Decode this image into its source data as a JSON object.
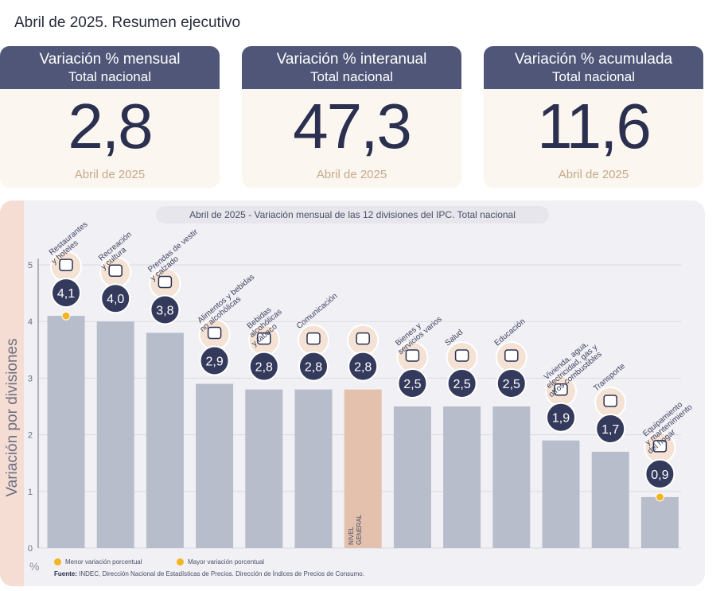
{
  "page": {
    "title": "Abril de 2025. Resumen ejecutivo"
  },
  "kpis": [
    {
      "title": "Variación % mensual",
      "subtitle": "Total nacional",
      "value": "2,8",
      "date": "Abril de 2025"
    },
    {
      "title": "Variación % interanual",
      "subtitle": "Total nacional",
      "value": "47,3",
      "date": "Abril de 2025"
    },
    {
      "title": "Variación % acumulada",
      "subtitle": "Total nacional",
      "value": "11,6",
      "date": "Abril de 2025"
    }
  ],
  "chart": {
    "side_label": "Variación por divisiones",
    "unit": "%",
    "legend_min": "Menor variación porcentual",
    "legend_max": "Mayor variación porcentual",
    "source_label": "Fuente:",
    "source_text": "INDEC, Dirección Nacional de Estadísticas de Precios. Dirección de Índices de Precios de Consumo.",
    "highlight_color": "#f2b623",
    "bar_color": "#b8bdcc",
    "general_bar_color": "#e3c1ad"
  },
  "chart_data": {
    "type": "bar",
    "title": "Abril de 2025 - Variación mensual de las 12 divisiones del IPC. Total nacional",
    "ylabel": "Variación por divisiones",
    "ylim": [
      0,
      5
    ],
    "yticks": [
      0,
      1,
      2,
      3,
      4,
      5
    ],
    "grid": true,
    "categories": [
      "Restaurantes y hoteles",
      "Recreación y cultura",
      "Prendas de vestir y calzado",
      "Alimentos y bebidas no alcohólicas",
      "Bebidas alcohólicas y tabaco",
      "Comunicación",
      "Nivel general",
      "Bienes y servicios varios",
      "Salud",
      "Educación",
      "Vivienda, agua, electricidad, gas y otros combustibles",
      "Transporte",
      "Equipamiento y mantenimiento del hogar"
    ],
    "values": [
      4.1,
      4.0,
      3.8,
      2.9,
      2.8,
      2.8,
      2.8,
      2.5,
      2.5,
      2.5,
      1.9,
      1.7,
      0.9
    ],
    "value_labels": [
      "4,1",
      "4,0",
      "3,8",
      "2,9",
      "2,8",
      "2,8",
      "2,8",
      "2,5",
      "2,5",
      "2,5",
      "1,9",
      "1,7",
      "0,9"
    ],
    "category_labels": [
      [
        "Restaurantes",
        "y hoteles"
      ],
      [
        "Recreación",
        "y cultura"
      ],
      [
        "Prendas de vestir",
        "y calzado"
      ],
      [
        "Alimentos y bebidas",
        "no alcohólicas"
      ],
      [
        "Bebidas",
        "alcohólicas",
        "y tabaco"
      ],
      [
        "Comunicación"
      ],
      [
        "NIVEL",
        "GENERAL"
      ],
      [
        "Bienes y",
        "servicios varios"
      ],
      [
        "Salud"
      ],
      [
        "Educación"
      ],
      [
        "Vivienda, agua,",
        "electricidad, gas y",
        "otros combustibles"
      ],
      [
        "Transporte"
      ],
      [
        "Equipamiento",
        "y mantenimiento",
        "del hogar"
      ]
    ],
    "icons": [
      "cutlery-icon",
      "umbrella-icon",
      "shirt-icon",
      "food-icon",
      "bottle-icon",
      "phone-icon",
      "",
      "scissors-icon",
      "medical-cross-icon",
      "notebook-icon",
      "lightbulb-icon",
      "car-icon",
      "appliance-icon"
    ],
    "max_index": 0,
    "min_index": 12,
    "general_index": 6
  }
}
